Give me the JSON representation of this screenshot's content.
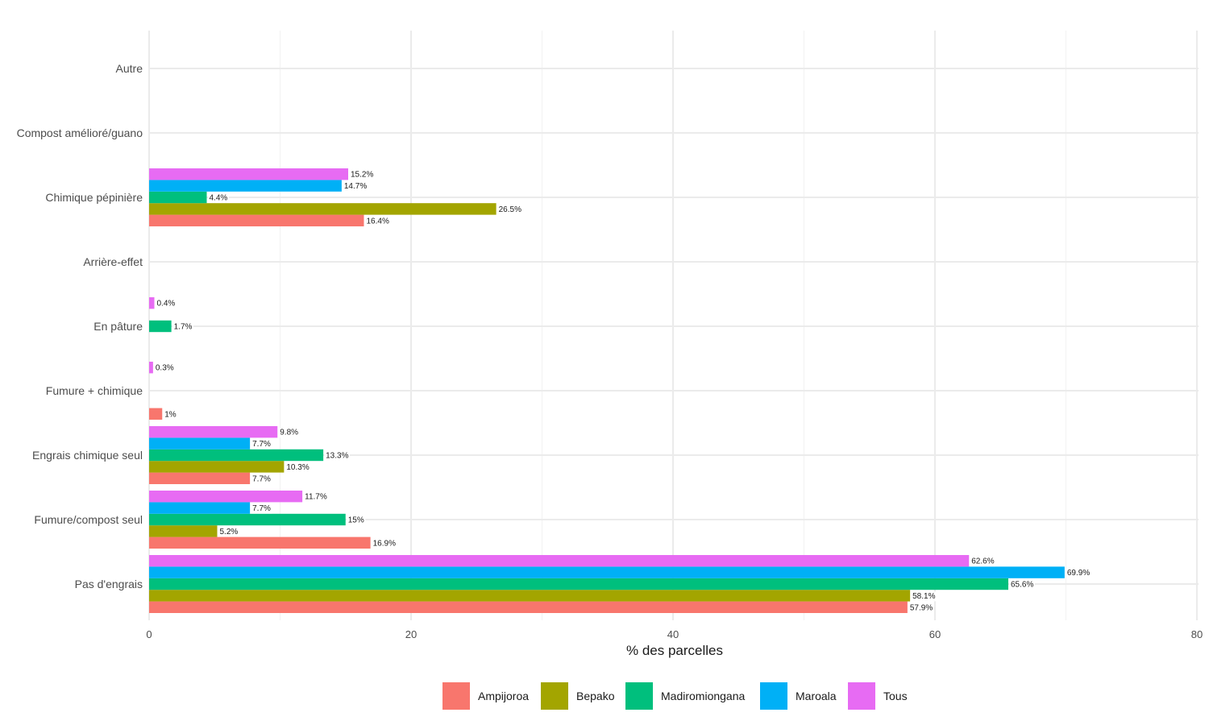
{
  "chart_data": {
    "type": "bar",
    "orientation": "horizontal",
    "title": "",
    "xlabel": "% des parcelles",
    "ylabel": "",
    "xlim": [
      0,
      80
    ],
    "x_ticks": [
      0,
      20,
      40,
      60,
      80
    ],
    "grid": true,
    "legend_position": "bottom",
    "categories": [
      "Autre",
      "Compost amélioré/guano",
      "Chimique pépinière",
      "Arrière-effet",
      "En pâture",
      "Fumure + chimique",
      "Engrais chimique seul",
      "Fumure/compost seul",
      "Pas d'engrais"
    ],
    "series": [
      {
        "name": "Ampijoroa",
        "color": "#F8766D",
        "values": [
          null,
          null,
          16.4,
          null,
          null,
          1.0,
          7.7,
          16.9,
          57.9
        ],
        "labels": [
          null,
          null,
          "16.4%",
          null,
          null,
          "1%",
          "7.7%",
          "16.9%",
          "57.9%"
        ]
      },
      {
        "name": "Bepako",
        "color": "#A3A500",
        "values": [
          null,
          null,
          26.5,
          null,
          null,
          null,
          10.3,
          5.2,
          58.1
        ],
        "labels": [
          null,
          null,
          "26.5%",
          null,
          null,
          null,
          "10.3%",
          "5.2%",
          "58.1%"
        ]
      },
      {
        "name": "Madiromiongana",
        "color": "#00BF7D",
        "values": [
          null,
          null,
          4.4,
          null,
          1.7,
          null,
          13.3,
          15.0,
          65.6
        ],
        "labels": [
          null,
          null,
          "4.4%",
          null,
          "1.7%",
          null,
          "13.3%",
          "15%",
          "65.6%"
        ]
      },
      {
        "name": "Maroala",
        "color": "#00B0F6",
        "values": [
          null,
          null,
          14.7,
          null,
          null,
          null,
          7.7,
          7.7,
          69.9
        ],
        "labels": [
          null,
          null,
          "14.7%",
          null,
          null,
          null,
          "7.7%",
          "7.7%",
          "69.9%"
        ]
      },
      {
        "name": "Tous",
        "color": "#E76BF3",
        "values": [
          null,
          null,
          15.2,
          null,
          0.4,
          0.3,
          9.8,
          11.7,
          62.6
        ],
        "labels": [
          null,
          null,
          "15.2%",
          null,
          "0.4%",
          "0.3%",
          "9.8%",
          "11.7%",
          "62.6%"
        ]
      }
    ]
  }
}
